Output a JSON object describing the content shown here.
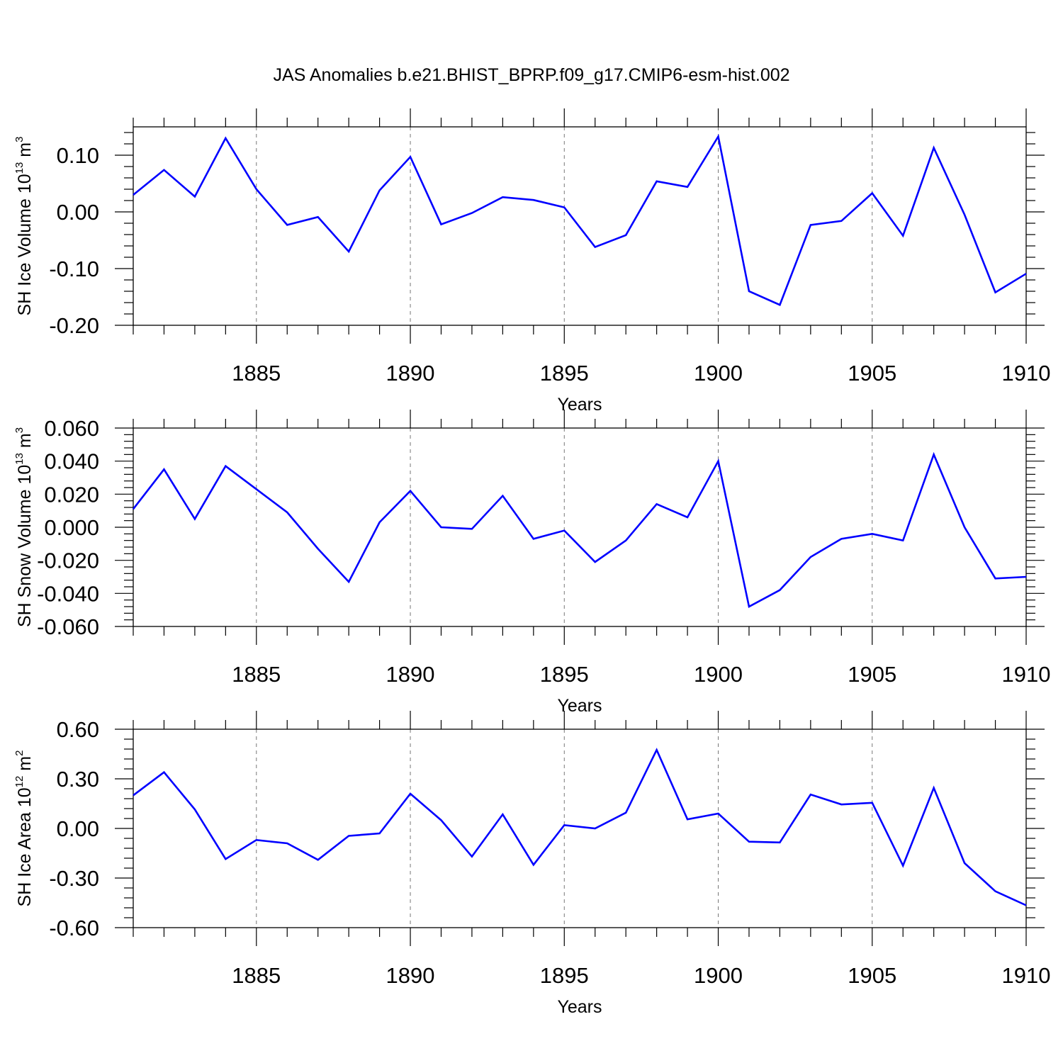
{
  "chart_data": {
    "title": "JAS Anomalies b.e21.BHIST_BPRP.f09_g17.CMIP6-esm-hist.002",
    "line_color": "#0000ff",
    "grid": "vertical dashed at major x ticks",
    "panels": [
      {
        "type": "line",
        "ylabel": "SH Ice Volume 10",
        "ylabel_exp": "13",
        "ylabel_unit": " m",
        "ylabel_unit_exp": "3",
        "xlabel": "Years",
        "xlim": [
          1881,
          1910
        ],
        "ylim": [
          -0.2,
          0.15
        ],
        "yticks": [
          -0.2,
          -0.1,
          0.0,
          0.1
        ],
        "ytick_labels": [
          "-0.20",
          "-0.10",
          "0.00",
          "0.10"
        ],
        "xticks": [
          1885,
          1890,
          1895,
          1900,
          1905,
          1910
        ],
        "xtick_labels": [
          "1885",
          "1890",
          "1895",
          "1900",
          "1905",
          "1910"
        ],
        "x": [
          1881,
          1882,
          1883,
          1884,
          1885,
          1886,
          1887,
          1888,
          1889,
          1890,
          1891,
          1892,
          1893,
          1894,
          1895,
          1896,
          1897,
          1898,
          1899,
          1900,
          1901,
          1902,
          1903,
          1904,
          1905,
          1906,
          1907,
          1908,
          1909,
          1910
        ],
        "values": [
          0.03,
          0.074,
          0.027,
          0.13,
          0.04,
          -0.023,
          -0.009,
          -0.07,
          0.038,
          0.097,
          -0.022,
          -0.002,
          0.026,
          0.021,
          0.008,
          -0.062,
          -0.041,
          0.054,
          0.044,
          0.133,
          -0.14,
          -0.164,
          -0.023,
          -0.016,
          0.033,
          -0.042,
          0.113,
          -0.005,
          -0.142,
          -0.109
        ]
      },
      {
        "type": "line",
        "ylabel": "SH Snow Volume 10",
        "ylabel_exp": "13",
        "ylabel_unit": " m",
        "ylabel_unit_exp": "3",
        "xlabel": "Years",
        "xlim": [
          1881,
          1910
        ],
        "ylim": [
          -0.06,
          0.06
        ],
        "yticks": [
          -0.06,
          -0.04,
          -0.02,
          0.0,
          0.02,
          0.04,
          0.06
        ],
        "ytick_labels": [
          "-0.060",
          "-0.040",
          "-0.020",
          "0.000",
          "0.020",
          "0.040",
          "0.060"
        ],
        "xticks": [
          1885,
          1890,
          1895,
          1900,
          1905,
          1910
        ],
        "xtick_labels": [
          "1885",
          "1890",
          "1895",
          "1900",
          "1905",
          "1910"
        ],
        "x": [
          1881,
          1882,
          1883,
          1884,
          1885,
          1886,
          1887,
          1888,
          1889,
          1890,
          1891,
          1892,
          1893,
          1894,
          1895,
          1896,
          1897,
          1898,
          1899,
          1900,
          1901,
          1902,
          1903,
          1904,
          1905,
          1906,
          1907,
          1908,
          1909,
          1910
        ],
        "values": [
          0.011,
          0.035,
          0.005,
          0.037,
          0.023,
          0.009,
          -0.013,
          -0.033,
          0.003,
          0.022,
          0.0,
          -0.001,
          0.019,
          -0.007,
          -0.002,
          -0.021,
          -0.008,
          0.014,
          0.006,
          0.04,
          -0.048,
          -0.038,
          -0.018,
          -0.007,
          -0.004,
          -0.008,
          0.044,
          0.0,
          -0.031,
          -0.03
        ]
      },
      {
        "type": "line",
        "ylabel": "SH Ice Area 10",
        "ylabel_exp": "12",
        "ylabel_unit": " m",
        "ylabel_unit_exp": "2",
        "xlabel": "Years",
        "xlim": [
          1881,
          1910
        ],
        "ylim": [
          -0.6,
          0.6
        ],
        "yticks": [
          -0.6,
          -0.3,
          0.0,
          0.3,
          0.6
        ],
        "ytick_labels": [
          "-0.60",
          "-0.30",
          "0.00",
          "0.30",
          "0.60"
        ],
        "xticks": [
          1885,
          1890,
          1895,
          1900,
          1905,
          1910
        ],
        "xtick_labels": [
          "1885",
          "1890",
          "1895",
          "1900",
          "1905",
          "1910"
        ],
        "x": [
          1881,
          1882,
          1883,
          1884,
          1885,
          1886,
          1887,
          1888,
          1889,
          1890,
          1891,
          1892,
          1893,
          1894,
          1895,
          1896,
          1897,
          1898,
          1899,
          1900,
          1901,
          1902,
          1903,
          1904,
          1905,
          1906,
          1907,
          1908,
          1909,
          1910
        ],
        "values": [
          0.2,
          0.34,
          0.115,
          -0.185,
          -0.07,
          -0.09,
          -0.19,
          -0.045,
          -0.03,
          0.21,
          0.05,
          -0.17,
          0.085,
          -0.22,
          0.02,
          0.0,
          0.095,
          0.475,
          0.055,
          0.09,
          -0.08,
          -0.085,
          0.205,
          0.145,
          0.155,
          -0.225,
          0.245,
          -0.21,
          -0.38,
          -0.465
        ]
      }
    ]
  }
}
